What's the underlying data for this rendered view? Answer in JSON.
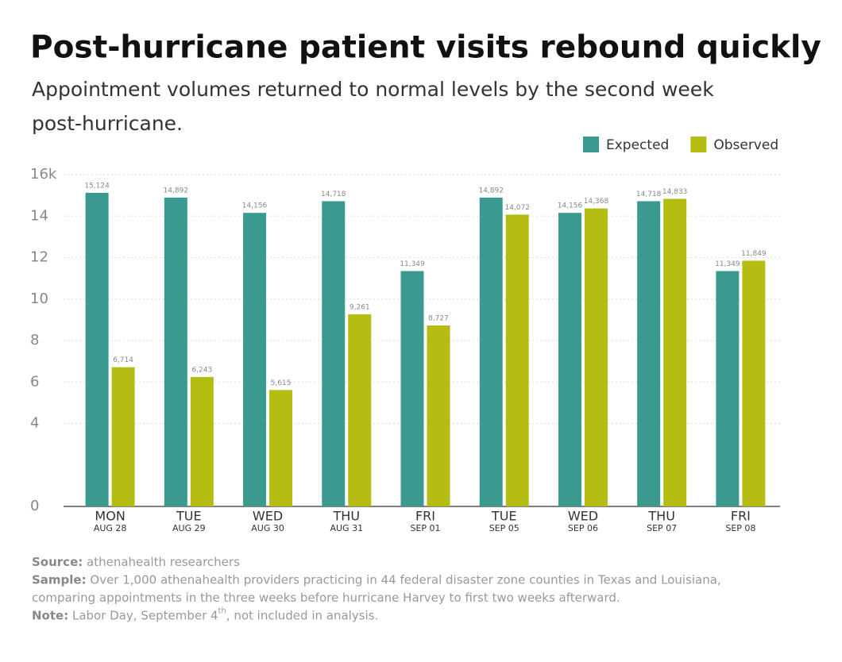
{
  "chart_data": {
    "type": "bar",
    "title": "Post-hurricane patient visits rebound quickly",
    "subtitle": [
      "Appointment volumes returned to normal levels by the second week",
      "post-hurricane."
    ],
    "categories": [
      "MON",
      "TUE",
      "WED",
      "THU",
      "FRI",
      "TUE",
      "WED",
      "THU",
      "FRI"
    ],
    "dates": [
      "AUG 28",
      "AUG 29",
      "AUG 30",
      "AUG 31",
      "SEP 01",
      "SEP 05",
      "SEP 06",
      "SEP 07",
      "SEP 08"
    ],
    "series": [
      {
        "name": "Expected",
        "color": "#3b9a8f",
        "values": [
          15.124,
          14.892,
          14.156,
          14.718,
          11.349,
          14.892,
          14.156,
          14.718,
          11.349
        ],
        "value_labels": [
          "15,124",
          "14,892",
          "14,156",
          "14,718",
          "11,349",
          "14,892",
          "14,156",
          "14,718",
          "11,349"
        ]
      },
      {
        "name": "Observed",
        "color": "#b5bd12",
        "values": [
          6.714,
          6.243,
          5.615,
          9.261,
          8.727,
          14.072,
          14.368,
          14.833,
          11.849
        ],
        "value_labels": [
          "6,714",
          "6,243",
          "5,615",
          "9,261",
          "8,727",
          "14,072",
          "14,368",
          "14,833",
          "11,849"
        ]
      }
    ],
    "ylim": [
      0,
      16
    ],
    "yticks": [
      0,
      4,
      6,
      8,
      10,
      12,
      14,
      {
        "value": 16,
        "label": "16k"
      }
    ],
    "grid": true,
    "legend": "top-right",
    "footnotes": [
      {
        "label": "Source:",
        "text": "athenahealth researchers"
      },
      {
        "label": "Sample:",
        "text": "Over 1,000 athenahealth providers practicing in 44 federal disaster zone counties in Texas and Louisiana,"
      },
      {
        "text": "comparing appointments in the three weeks before hurricane Harvey to first two weeks afterward."
      },
      {
        "label": "Note:",
        "text": "Labor Day, September 4",
        "sup": "th",
        "after": ", not included in analysis."
      }
    ]
  }
}
